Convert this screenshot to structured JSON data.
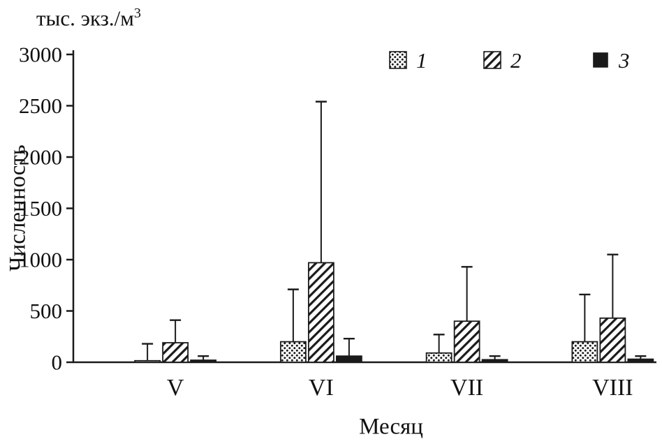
{
  "chart_data": {
    "type": "bar",
    "title": "",
    "units_label": {
      "text": "тыс. экз./м",
      "sup": "3"
    },
    "ylabel": "Численность",
    "xlabel": "Месяц",
    "categories": [
      "V",
      "VI",
      "VII",
      "VIII"
    ],
    "ylim": [
      0,
      3000
    ],
    "yticks": [
      0,
      500,
      1000,
      1500,
      2000,
      2500,
      3000
    ],
    "grid": false,
    "legend_position": "top-right",
    "error_bars": "upper",
    "series": [
      {
        "name": "1",
        "pattern": "dotted",
        "values": [
          15,
          200,
          90,
          200
        ],
        "error_tops": [
          180,
          710,
          270,
          660
        ]
      },
      {
        "name": "2",
        "pattern": "diagonal-hatch",
        "values": [
          190,
          970,
          400,
          430
        ],
        "error_tops": [
          410,
          2540,
          930,
          1050
        ]
      },
      {
        "name": "3",
        "pattern": "solid-black",
        "values": [
          20,
          60,
          25,
          30
        ],
        "error_tops": [
          60,
          230,
          60,
          60
        ]
      }
    ],
    "colors": {
      "ink": "#1a1a1a",
      "background": "#ffffff"
    }
  }
}
